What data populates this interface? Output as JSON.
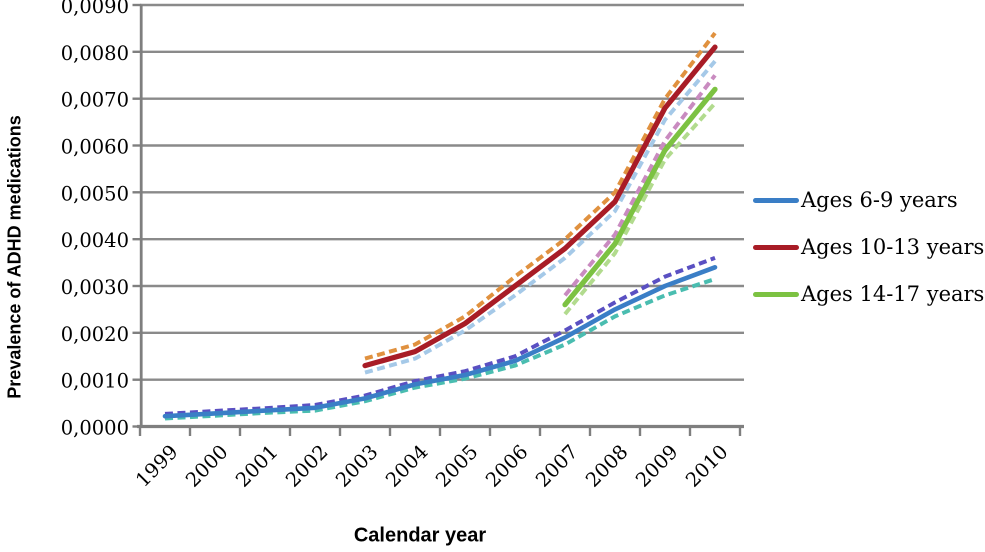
{
  "colors": {
    "background": "#ffffff",
    "gridline": "#8a8a8a",
    "axis": "#7f7f7f",
    "text": "#000000"
  },
  "chart_data": {
    "type": "line",
    "title": "",
    "xlabel": "Calendar year",
    "ylabel": "Prevalence of ADHD medications",
    "categories": [
      "1999",
      "2000",
      "2001",
      "2002",
      "2003",
      "2004",
      "2005",
      "2006",
      "2007",
      "2008",
      "2009",
      "2010"
    ],
    "y_ticks": {
      "values": [
        0.0,
        0.001,
        0.002,
        0.003,
        0.004,
        0.005,
        0.006,
        0.007,
        0.008,
        0.009
      ],
      "labels": [
        "0,0000",
        "0,0010",
        "0,0020",
        "0,0030",
        "0,0040",
        "0,0050",
        "0,0060",
        "0,0070",
        "0,0080",
        "0,0090"
      ]
    },
    "ylim": [
      0,
      0.009
    ],
    "grid": "horizontal",
    "legend_position": "right-middle",
    "series": [
      {
        "id": "ages-6-9-upper-ci",
        "name": "Ages 6-9 years (upper dashed)",
        "color": "#5a50c2",
        "dash": true,
        "width": 4,
        "start_index": 0,
        "values": [
          0.00027,
          0.00033,
          0.00039,
          0.00046,
          0.00066,
          0.00097,
          0.00118,
          0.0015,
          0.00205,
          0.00265,
          0.0032,
          0.0036
        ]
      },
      {
        "id": "ages-6-9-lower-ci",
        "name": "Ages 6-9 years (lower dashed)",
        "color": "#4abdb0",
        "dash": true,
        "width": 4,
        "start_index": 0,
        "values": [
          0.00017,
          0.00023,
          0.00029,
          0.00034,
          0.00054,
          0.00083,
          0.00102,
          0.0013,
          0.00175,
          0.00235,
          0.0028,
          0.00315
        ]
      },
      {
        "id": "ages-10-13-upper-ci",
        "name": "Ages 10-13 years (upper dashed)",
        "color": "#e0913f",
        "dash": true,
        "width": 4,
        "start_index": 4,
        "values": [
          0.00145,
          0.00175,
          0.00235,
          0.0032,
          0.004,
          0.005,
          0.007,
          0.0084
        ]
      },
      {
        "id": "ages-10-13-lower-ci",
        "name": "Ages 10-13 years (lower dashed)",
        "color": "#a5c9e8",
        "dash": true,
        "width": 4,
        "start_index": 4,
        "values": [
          0.00115,
          0.00145,
          0.00205,
          0.0028,
          0.0036,
          0.0046,
          0.00655,
          0.0078
        ]
      },
      {
        "id": "ages-14-17-upper-ci",
        "name": "Ages 14-17 years (upper dashed)",
        "color": "#c98bc0",
        "dash": true,
        "width": 4,
        "start_index": 8,
        "values": [
          0.0028,
          0.0041,
          0.0061,
          0.0075
        ]
      },
      {
        "id": "ages-14-17-lower-ci",
        "name": "Ages 14-17 years (lower dashed)",
        "color": "#b2db8e",
        "dash": true,
        "width": 4,
        "start_index": 8,
        "values": [
          0.0024,
          0.0037,
          0.0057,
          0.0069
        ]
      },
      {
        "id": "ages-6-9",
        "name": "Ages 6-9 years",
        "color": "#3a7ec6",
        "dash": false,
        "width": 4.6,
        "start_index": 0,
        "values": [
          0.00022,
          0.00028,
          0.00034,
          0.0004,
          0.0006,
          0.0009,
          0.0011,
          0.0014,
          0.0019,
          0.0025,
          0.003,
          0.0034
        ]
      },
      {
        "id": "ages-10-13",
        "name": "Ages 10-13 years",
        "color": "#a81c26",
        "dash": false,
        "width": 5.2,
        "start_index": 4,
        "values": [
          0.0013,
          0.0016,
          0.0022,
          0.003,
          0.0038,
          0.0048,
          0.0068,
          0.0081
        ]
      },
      {
        "id": "ages-14-17",
        "name": "Ages 14-17 years",
        "color": "#7cc242",
        "dash": false,
        "width": 5.2,
        "start_index": 8,
        "values": [
          0.0026,
          0.0039,
          0.0059,
          0.0072
        ]
      }
    ],
    "legend": [
      {
        "label": "Ages 6-9 years",
        "color": "#3a7ec6"
      },
      {
        "label": "Ages 10-13 years",
        "color": "#a81c26"
      },
      {
        "label": "Ages 14-17 years",
        "color": "#7cc242"
      }
    ]
  }
}
